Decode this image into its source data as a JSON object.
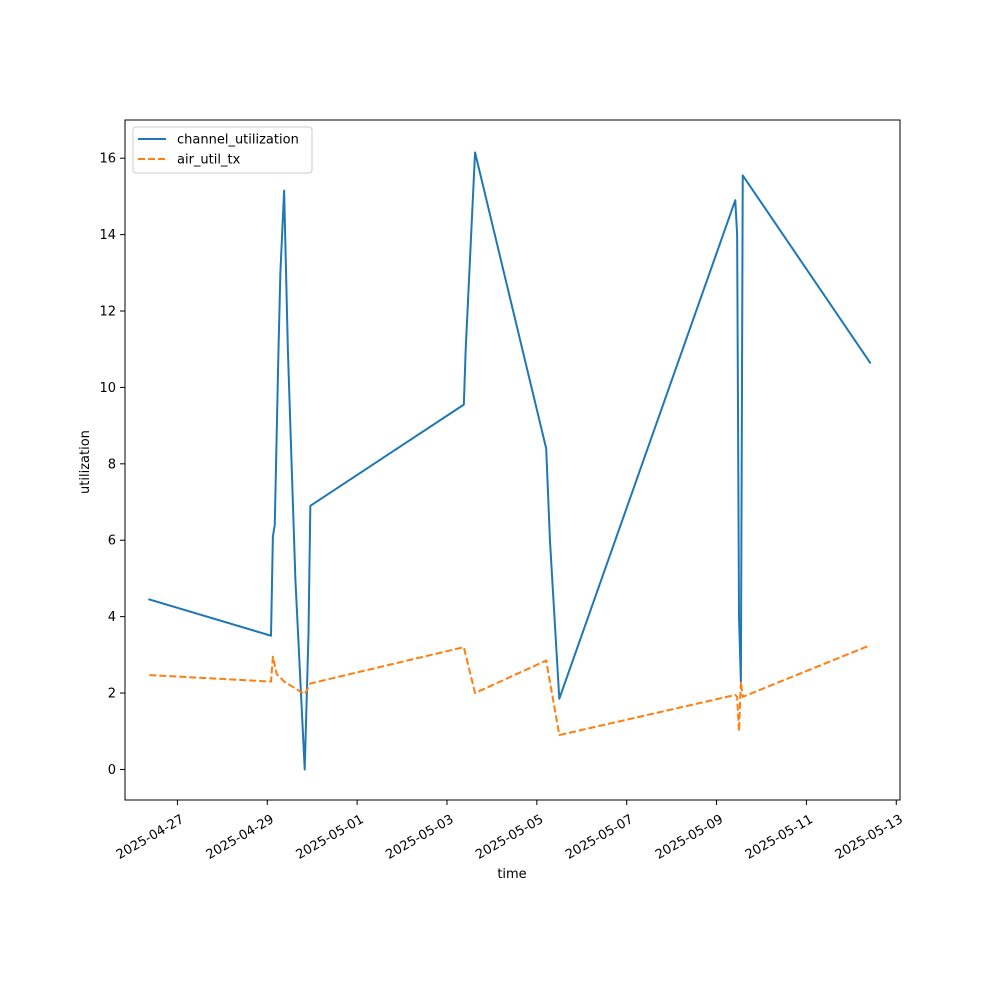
{
  "chart_data": {
    "type": "line",
    "xlabel": "time",
    "ylabel": "utilization",
    "xlim": [
      "2025-04-25T20:00",
      "2025-05-13T02:00"
    ],
    "ylim": [
      -0.8,
      17.0
    ],
    "x_ticks": [
      "2025-04-27",
      "2025-04-29",
      "2025-05-01",
      "2025-05-03",
      "2025-05-05",
      "2025-05-07",
      "2025-05-09",
      "2025-05-11",
      "2025-05-13"
    ],
    "y_ticks": [
      0,
      2,
      4,
      6,
      8,
      10,
      12,
      14,
      16
    ],
    "grid": false,
    "legend_position": "top-left",
    "series": [
      {
        "name": "channel_utilization",
        "color": "#1f77b4",
        "dash": "solid",
        "points": [
          [
            "2025-04-26T09:00",
            4.45
          ],
          [
            "2025-04-29T02:00",
            3.5
          ],
          [
            "2025-04-29T03:00",
            6.1
          ],
          [
            "2025-04-29T04:00",
            6.4
          ],
          [
            "2025-04-29T06:00",
            11.0
          ],
          [
            "2025-04-29T07:00",
            13.0
          ],
          [
            "2025-04-29T09:00",
            15.15
          ],
          [
            "2025-04-29T11:00",
            11.0
          ],
          [
            "2025-04-29T15:00",
            5.0
          ],
          [
            "2025-04-29T19:00",
            1.0
          ],
          [
            "2025-04-29T20:00",
            0.0
          ],
          [
            "2025-04-29T22:00",
            3.5
          ],
          [
            "2025-04-29T23:00",
            6.9
          ],
          [
            "2025-05-03T09:00",
            9.55
          ],
          [
            "2025-05-03T10:00",
            11.0
          ],
          [
            "2025-05-03T15:00",
            16.15
          ],
          [
            "2025-05-05T05:00",
            8.4
          ],
          [
            "2025-05-05T07:00",
            6.0
          ],
          [
            "2025-05-05T12:00",
            1.85
          ],
          [
            "2025-05-09T10:00",
            14.9
          ],
          [
            "2025-05-09T11:00",
            14.0
          ],
          [
            "2025-05-09T12:00",
            4.0
          ],
          [
            "2025-05-09T13:00",
            2.3
          ],
          [
            "2025-05-09T14:00",
            15.55
          ],
          [
            "2025-05-12T10:00",
            10.65
          ]
        ]
      },
      {
        "name": "air_util_tx",
        "color": "#ff7f0e",
        "dash": "dashed",
        "points": [
          [
            "2025-04-26T09:00",
            2.47
          ],
          [
            "2025-04-29T02:00",
            2.3
          ],
          [
            "2025-04-29T03:00",
            2.95
          ],
          [
            "2025-04-29T05:00",
            2.5
          ],
          [
            "2025-04-29T09:00",
            2.3
          ],
          [
            "2025-04-29T20:00",
            1.97
          ],
          [
            "2025-04-29T23:00",
            2.25
          ],
          [
            "2025-05-03T09:00",
            3.2
          ],
          [
            "2025-05-03T15:00",
            2.0
          ],
          [
            "2025-05-05T05:00",
            2.85
          ],
          [
            "2025-05-05T12:00",
            0.9
          ],
          [
            "2025-05-09T10:00",
            1.95
          ],
          [
            "2025-05-09T11:00",
            1.9
          ],
          [
            "2025-05-09T12:00",
            1.0
          ],
          [
            "2025-05-09T13:00",
            2.3
          ],
          [
            "2025-05-09T14:00",
            1.9
          ],
          [
            "2025-05-12T10:00",
            3.25
          ]
        ]
      }
    ]
  }
}
